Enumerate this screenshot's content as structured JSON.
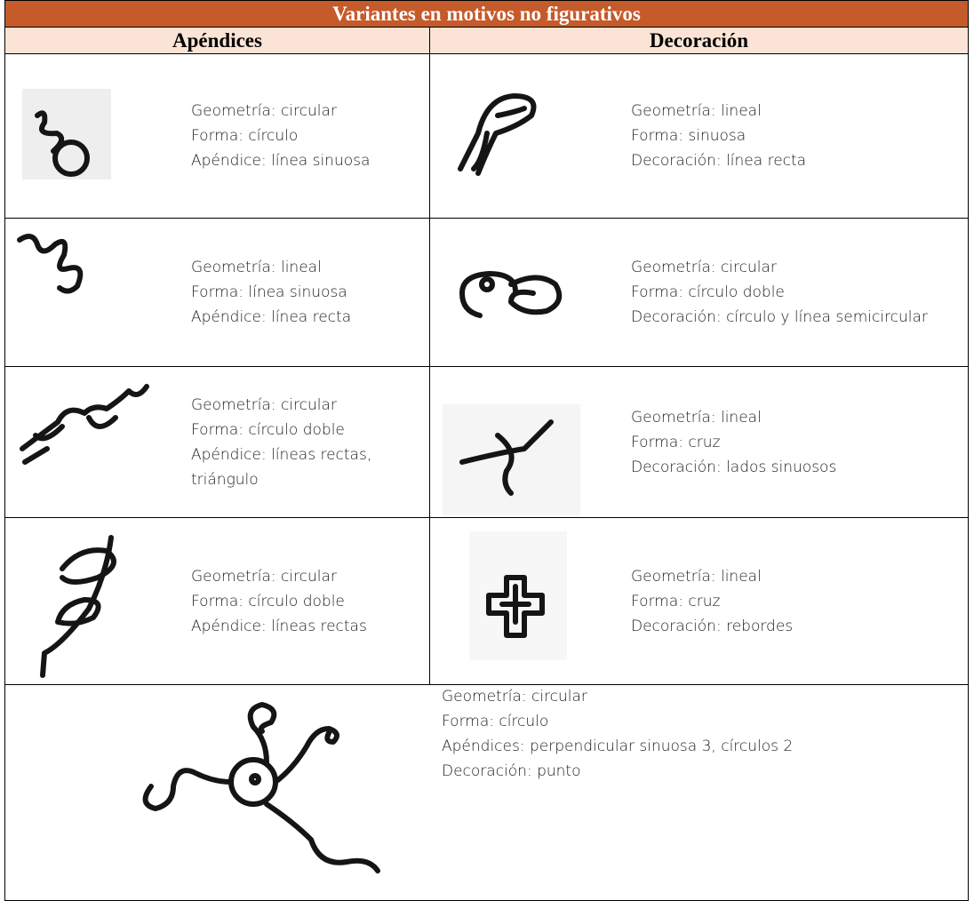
{
  "title": "Variantes en motivos no figurativos",
  "headers": [
    "Apéndices",
    "Decoración"
  ],
  "rows": [
    {
      "left": [
        "Geometría: circular",
        "Forma: círculo",
        "Apéndice: línea sinuosa"
      ],
      "right": [
        "Geometría: lineal",
        "Forma: sinuosa",
        "Decoración: línea recta"
      ]
    },
    {
      "left": [
        "Geometría: lineal",
        "Forma: línea sinuosa",
        "Apéndice: línea recta"
      ],
      "right": [
        "Geometría: circular",
        "Forma: círculo doble",
        "Decoración: círculo y línea semicircular"
      ]
    },
    {
      "left": [
        "Geometría: circular",
        "Forma: círculo doble",
        "Apéndice: líneas rectas, triángulo"
      ],
      "right": [
        "Geometría: lineal",
        "Forma: cruz",
        "Decoración: lados sinuosos"
      ]
    },
    {
      "left": [
        "Geometría: circular",
        "Forma: círculo doble",
        "Apéndice: líneas rectas"
      ],
      "right": [
        "Geometría: lineal",
        "Forma: cruz",
        "Decoración: rebordes"
      ]
    }
  ],
  "footer_row": [
    "Geometría: circular",
    "Forma: círculo",
    "Apéndices: perpendicular sinuosa 3, círculos 2",
    "Decoración: punto"
  ]
}
